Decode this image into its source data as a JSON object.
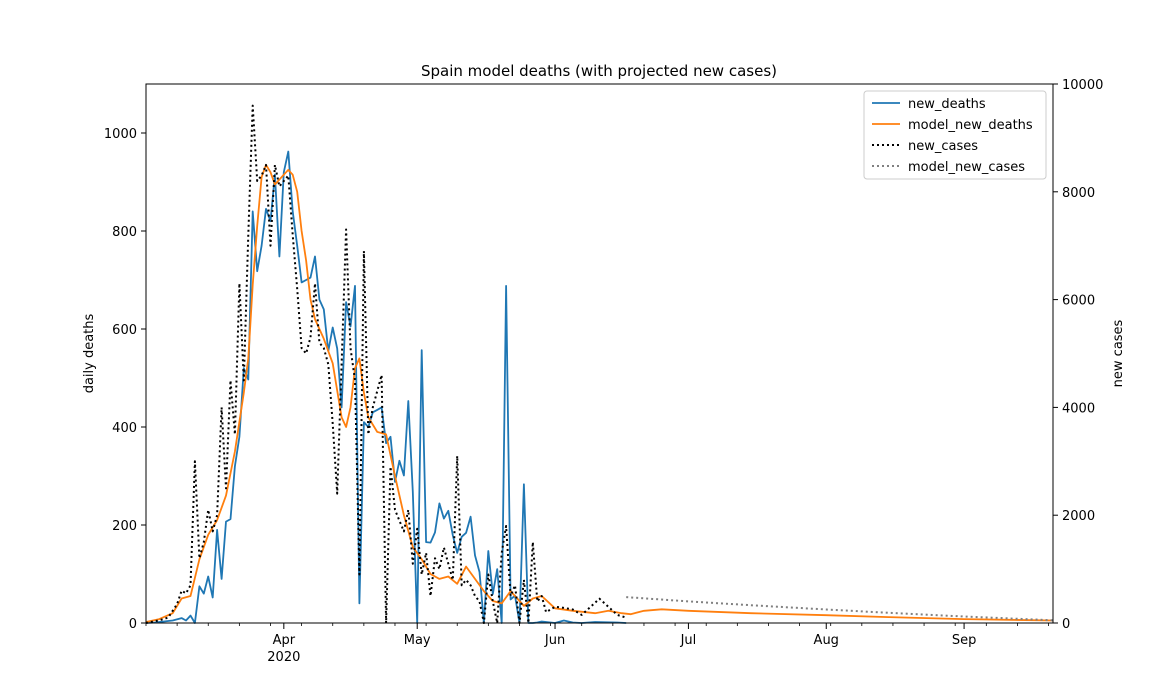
{
  "chart_data": {
    "type": "line",
    "title": "Spain model deaths (with projected new cases)",
    "ylabel": "daily deaths",
    "y2label": "new cases",
    "ylim": [
      0,
      1100
    ],
    "y2lim": [
      0,
      10000
    ],
    "yticks": [
      0,
      200,
      400,
      600,
      800,
      1000
    ],
    "y2ticks": [
      0,
      2000,
      4000,
      6000,
      8000,
      10000
    ],
    "x_start": "2020-03-01",
    "x_end": "2020-09-21",
    "month_ticks": [
      {
        "date": "2020-04-01",
        "label": "Apr",
        "sublabel": "2020"
      },
      {
        "date": "2020-05-01",
        "label": "May",
        "sublabel": ""
      },
      {
        "date": "2020-06-01",
        "label": "Jun",
        "sublabel": ""
      },
      {
        "date": "2020-07-01",
        "label": "Jul",
        "sublabel": ""
      },
      {
        "date": "2020-08-01",
        "label": "Aug",
        "sublabel": ""
      },
      {
        "date": "2020-09-01",
        "label": "Sep",
        "sublabel": ""
      }
    ],
    "legend_position": "upper-right",
    "legend": [
      "new_deaths",
      "model_new_deaths",
      "new_cases",
      "model_new_cases"
    ],
    "series": [
      {
        "name": "new_deaths",
        "axis": "left",
        "color": "#1f77b4",
        "style": "solid",
        "points": [
          [
            "2020-03-01",
            0
          ],
          [
            "2020-03-03",
            1
          ],
          [
            "2020-03-05",
            3
          ],
          [
            "2020-03-07",
            5
          ],
          [
            "2020-03-09",
            10
          ],
          [
            "2020-03-10",
            5
          ],
          [
            "2020-03-11",
            15
          ],
          [
            "2020-03-12",
            0
          ],
          [
            "2020-03-13",
            75
          ],
          [
            "2020-03-14",
            60
          ],
          [
            "2020-03-15",
            95
          ],
          [
            "2020-03-16",
            52
          ],
          [
            "2020-03-17",
            190
          ],
          [
            "2020-03-18",
            90
          ],
          [
            "2020-03-19",
            207
          ],
          [
            "2020-03-20",
            212
          ],
          [
            "2020-03-21",
            320
          ],
          [
            "2020-03-22",
            380
          ],
          [
            "2020-03-23",
            520
          ],
          [
            "2020-03-24",
            497
          ],
          [
            "2020-03-25",
            840
          ],
          [
            "2020-03-26",
            718
          ],
          [
            "2020-03-27",
            770
          ],
          [
            "2020-03-28",
            845
          ],
          [
            "2020-03-29",
            820
          ],
          [
            "2020-03-30",
            915
          ],
          [
            "2020-03-31",
            748
          ],
          [
            "2020-04-01",
            920
          ],
          [
            "2020-04-02",
            962
          ],
          [
            "2020-04-03",
            840
          ],
          [
            "2020-04-04",
            770
          ],
          [
            "2020-04-05",
            695
          ],
          [
            "2020-04-06",
            700
          ],
          [
            "2020-04-07",
            705
          ],
          [
            "2020-04-08",
            748
          ],
          [
            "2020-04-09",
            660
          ],
          [
            "2020-04-10",
            640
          ],
          [
            "2020-04-11",
            555
          ],
          [
            "2020-04-12",
            603
          ],
          [
            "2020-04-13",
            560
          ],
          [
            "2020-04-14",
            440
          ],
          [
            "2020-04-15",
            655
          ],
          [
            "2020-04-16",
            605
          ],
          [
            "2020-04-17",
            688
          ],
          [
            "2020-04-18",
            40
          ],
          [
            "2020-04-19",
            410
          ],
          [
            "2020-04-20",
            400
          ],
          [
            "2020-04-21",
            430
          ],
          [
            "2020-04-22",
            435
          ],
          [
            "2020-04-23",
            440
          ],
          [
            "2020-04-24",
            367
          ],
          [
            "2020-04-25",
            380
          ],
          [
            "2020-04-26",
            288
          ],
          [
            "2020-04-27",
            331
          ],
          [
            "2020-04-28",
            301
          ],
          [
            "2020-04-29",
            453
          ],
          [
            "2020-04-30",
            268
          ],
          [
            "2020-05-01",
            0
          ],
          [
            "2020-05-02",
            557
          ],
          [
            "2020-05-03",
            165
          ],
          [
            "2020-05-04",
            164
          ],
          [
            "2020-05-05",
            185
          ],
          [
            "2020-05-06",
            244
          ],
          [
            "2020-05-07",
            213
          ],
          [
            "2020-05-08",
            229
          ],
          [
            "2020-05-09",
            179
          ],
          [
            "2020-05-10",
            143
          ],
          [
            "2020-05-11",
            176
          ],
          [
            "2020-05-12",
            184
          ],
          [
            "2020-05-13",
            217
          ],
          [
            "2020-05-14",
            138
          ],
          [
            "2020-05-15",
            104
          ],
          [
            "2020-05-16",
            0
          ],
          [
            "2020-05-17",
            147
          ],
          [
            "2020-05-18",
            59
          ],
          [
            "2020-05-19",
            110
          ],
          [
            "2020-05-20",
            0
          ],
          [
            "2020-05-21",
            688
          ],
          [
            "2020-05-22",
            48
          ],
          [
            "2020-05-23",
            56
          ],
          [
            "2020-05-24",
            0
          ],
          [
            "2020-05-25",
            283
          ],
          [
            "2020-05-26",
            0
          ],
          [
            "2020-05-27",
            0
          ],
          [
            "2020-05-28",
            1
          ],
          [
            "2020-05-29",
            3
          ],
          [
            "2020-05-30",
            2
          ],
          [
            "2020-06-01",
            0
          ],
          [
            "2020-06-03",
            5
          ],
          [
            "2020-06-05",
            1
          ],
          [
            "2020-06-07",
            0
          ],
          [
            "2020-06-10",
            2
          ],
          [
            "2020-06-15",
            1
          ],
          [
            "2020-06-17",
            0
          ]
        ]
      },
      {
        "name": "model_new_deaths",
        "axis": "left",
        "color": "#ff7f0e",
        "style": "solid",
        "points": [
          [
            "2020-03-01",
            2
          ],
          [
            "2020-03-04",
            8
          ],
          [
            "2020-03-07",
            20
          ],
          [
            "2020-03-09",
            50
          ],
          [
            "2020-03-11",
            55
          ],
          [
            "2020-03-13",
            130
          ],
          [
            "2020-03-15",
            180
          ],
          [
            "2020-03-17",
            210
          ],
          [
            "2020-03-19",
            260
          ],
          [
            "2020-03-21",
            350
          ],
          [
            "2020-03-23",
            470
          ],
          [
            "2020-03-24",
            540
          ],
          [
            "2020-03-25",
            690
          ],
          [
            "2020-03-26",
            810
          ],
          [
            "2020-03-27",
            910
          ],
          [
            "2020-03-28",
            935
          ],
          [
            "2020-03-29",
            920
          ],
          [
            "2020-03-30",
            895
          ],
          [
            "2020-04-01",
            915
          ],
          [
            "2020-04-02",
            925
          ],
          [
            "2020-04-03",
            915
          ],
          [
            "2020-04-04",
            880
          ],
          [
            "2020-04-05",
            800
          ],
          [
            "2020-04-06",
            740
          ],
          [
            "2020-04-07",
            660
          ],
          [
            "2020-04-08",
            620
          ],
          [
            "2020-04-10",
            580
          ],
          [
            "2020-04-12",
            530
          ],
          [
            "2020-04-14",
            420
          ],
          [
            "2020-04-15",
            400
          ],
          [
            "2020-04-16",
            440
          ],
          [
            "2020-04-17",
            520
          ],
          [
            "2020-04-18",
            540
          ],
          [
            "2020-04-19",
            470
          ],
          [
            "2020-04-20",
            420
          ],
          [
            "2020-04-22",
            390
          ],
          [
            "2020-04-24",
            385
          ],
          [
            "2020-04-26",
            300
          ],
          [
            "2020-04-28",
            220
          ],
          [
            "2020-04-30",
            155
          ],
          [
            "2020-05-02",
            130
          ],
          [
            "2020-05-04",
            100
          ],
          [
            "2020-05-06",
            90
          ],
          [
            "2020-05-08",
            95
          ],
          [
            "2020-05-10",
            80
          ],
          [
            "2020-05-12",
            115
          ],
          [
            "2020-05-14",
            90
          ],
          [
            "2020-05-16",
            65
          ],
          [
            "2020-05-18",
            45
          ],
          [
            "2020-05-20",
            40
          ],
          [
            "2020-05-22",
            65
          ],
          [
            "2020-05-24",
            45
          ],
          [
            "2020-05-25",
            35
          ],
          [
            "2020-05-27",
            50
          ],
          [
            "2020-05-29",
            55
          ],
          [
            "2020-06-01",
            30
          ],
          [
            "2020-06-05",
            25
          ],
          [
            "2020-06-10",
            20
          ],
          [
            "2020-06-13",
            25
          ],
          [
            "2020-06-16",
            20
          ],
          [
            "2020-06-18",
            18
          ],
          [
            "2020-06-21",
            25
          ],
          [
            "2020-06-25",
            28
          ],
          [
            "2020-07-01",
            25
          ],
          [
            "2020-07-15",
            20
          ],
          [
            "2020-08-01",
            16
          ],
          [
            "2020-08-15",
            12
          ],
          [
            "2020-09-01",
            8
          ],
          [
            "2020-09-21",
            5
          ]
        ]
      },
      {
        "name": "new_cases",
        "axis": "right",
        "color": "#000000",
        "style": "dotted",
        "points": [
          [
            "2020-03-01",
            0
          ],
          [
            "2020-03-04",
            50
          ],
          [
            "2020-03-06",
            100
          ],
          [
            "2020-03-08",
            350
          ],
          [
            "2020-03-09",
            600
          ],
          [
            "2020-03-10",
            550
          ],
          [
            "2020-03-11",
            700
          ],
          [
            "2020-03-12",
            3000
          ],
          [
            "2020-03-13",
            1200
          ],
          [
            "2020-03-14",
            1500
          ],
          [
            "2020-03-15",
            2100
          ],
          [
            "2020-03-16",
            1700
          ],
          [
            "2020-03-17",
            2000
          ],
          [
            "2020-03-18",
            4000
          ],
          [
            "2020-03-19",
            2500
          ],
          [
            "2020-03-20",
            4500
          ],
          [
            "2020-03-21",
            3500
          ],
          [
            "2020-03-22",
            6300
          ],
          [
            "2020-03-23",
            4500
          ],
          [
            "2020-03-24",
            7200
          ],
          [
            "2020-03-25",
            9600
          ],
          [
            "2020-03-26",
            8200
          ],
          [
            "2020-03-27",
            8300
          ],
          [
            "2020-03-28",
            8500
          ],
          [
            "2020-03-29",
            7000
          ],
          [
            "2020-03-30",
            8500
          ],
          [
            "2020-03-31",
            8100
          ],
          [
            "2020-04-01",
            8200
          ],
          [
            "2020-04-02",
            8300
          ],
          [
            "2020-04-03",
            7200
          ],
          [
            "2020-04-04",
            6200
          ],
          [
            "2020-04-05",
            5100
          ],
          [
            "2020-04-06",
            5000
          ],
          [
            "2020-04-07",
            5300
          ],
          [
            "2020-04-08",
            6300
          ],
          [
            "2020-04-09",
            5200
          ],
          [
            "2020-04-10",
            5100
          ],
          [
            "2020-04-11",
            4800
          ],
          [
            "2020-04-12",
            3700
          ],
          [
            "2020-04-13",
            2400
          ],
          [
            "2020-04-14",
            4800
          ],
          [
            "2020-04-15",
            7300
          ],
          [
            "2020-04-16",
            5100
          ],
          [
            "2020-04-17",
            4500
          ],
          [
            "2020-04-18",
            900
          ],
          [
            "2020-04-19",
            6900
          ],
          [
            "2020-04-20",
            3500
          ],
          [
            "2020-04-21",
            4000
          ],
          [
            "2020-04-22",
            4300
          ],
          [
            "2020-04-23",
            4600
          ],
          [
            "2020-04-24",
            0
          ],
          [
            "2020-04-25",
            2900
          ],
          [
            "2020-04-26",
            2100
          ],
          [
            "2020-04-27",
            1900
          ],
          [
            "2020-04-28",
            1700
          ],
          [
            "2020-04-29",
            2100
          ],
          [
            "2020-04-30",
            1100
          ],
          [
            "2020-05-01",
            1750
          ],
          [
            "2020-05-02",
            900
          ],
          [
            "2020-05-03",
            1300
          ],
          [
            "2020-05-04",
            500
          ],
          [
            "2020-05-05",
            1200
          ],
          [
            "2020-05-06",
            1000
          ],
          [
            "2020-05-07",
            1400
          ],
          [
            "2020-05-08",
            1100
          ],
          [
            "2020-05-09",
            800
          ],
          [
            "2020-05-10",
            3100
          ],
          [
            "2020-05-11",
            700
          ],
          [
            "2020-05-12",
            800
          ],
          [
            "2020-05-13",
            700
          ],
          [
            "2020-05-14",
            500
          ],
          [
            "2020-05-15",
            400
          ],
          [
            "2020-05-16",
            0
          ],
          [
            "2020-05-17",
            900
          ],
          [
            "2020-05-18",
            400
          ],
          [
            "2020-05-19",
            0
          ],
          [
            "2020-05-20",
            1300
          ],
          [
            "2020-05-21",
            1800
          ],
          [
            "2020-05-22",
            500
          ],
          [
            "2020-05-23",
            700
          ],
          [
            "2020-05-24",
            0
          ],
          [
            "2020-05-25",
            800
          ],
          [
            "2020-05-26",
            0
          ],
          [
            "2020-05-27",
            1500
          ],
          [
            "2020-05-28",
            400
          ],
          [
            "2020-05-29",
            500
          ],
          [
            "2020-05-30",
            200
          ],
          [
            "2020-06-01",
            300
          ],
          [
            "2020-06-03",
            280
          ],
          [
            "2020-06-05",
            250
          ],
          [
            "2020-06-07",
            150
          ],
          [
            "2020-06-09",
            300
          ],
          [
            "2020-06-11",
            450
          ],
          [
            "2020-06-13",
            300
          ],
          [
            "2020-06-15",
            150
          ],
          [
            "2020-06-17",
            100
          ]
        ]
      },
      {
        "name": "model_new_cases",
        "axis": "right",
        "color": "#808080",
        "style": "dotted",
        "points": [
          [
            "2020-06-17",
            480
          ],
          [
            "2020-07-01",
            400
          ],
          [
            "2020-07-15",
            330
          ],
          [
            "2020-08-01",
            250
          ],
          [
            "2020-08-15",
            190
          ],
          [
            "2020-09-01",
            120
          ],
          [
            "2020-09-21",
            50
          ]
        ]
      }
    ]
  }
}
